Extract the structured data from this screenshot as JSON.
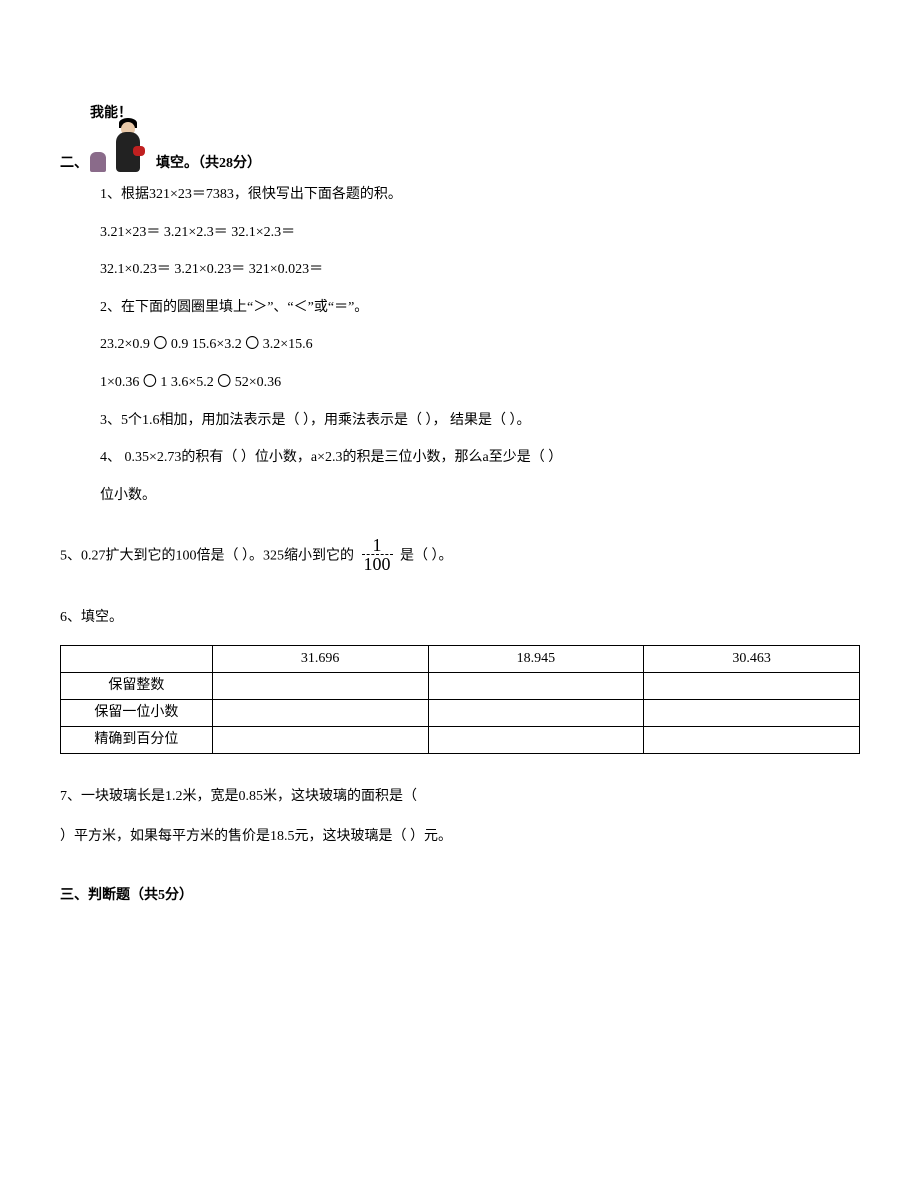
{
  "section2": {
    "prefix": "二、",
    "image_alt": "我能！",
    "title": "填空。（共28分）",
    "q1": {
      "stem": "1、根据321×23＝7383，很快写出下面各题的积。",
      "row1": "3.21×23＝  3.21×2.3＝  32.1×2.3＝",
      "row2": "32.1×0.23＝  3.21×0.23＝  321×0.023＝"
    },
    "q2": {
      "stem": "2、在下面的圆圈里填上“＞”、“＜”或“＝”。",
      "row1": "23.2×0.9 〇 0.9 15.6×3.2 〇 3.2×15.6",
      "row2": "1×0.36 〇 1 3.6×5.2 〇 52×0.36"
    },
    "q3": "3、5个1.6相加，用加法表示是（  ），用乘法表示是（  ），  结果是（  ）。",
    "q4_a": "4、 0.35×2.73的积有（  ）位小数，a×2.3的积是三位小数，那么a至少是（  ）",
    "q4_b": "位小数。"
  },
  "q5": {
    "before_fraction": "5、0.27扩大到它的100倍是（  ）。325缩小到它的",
    "fraction_num": "1",
    "fraction_den": "100",
    "after_fraction": "  是（  ）。"
  },
  "q6": {
    "stem": "6、填空。",
    "table": {
      "headers": [
        "",
        "31.696",
        "18.945",
        "30.463"
      ],
      "rows": [
        [
          "保留整数",
          "",
          "",
          ""
        ],
        [
          "保留一位小数",
          "",
          "",
          ""
        ],
        [
          "精确到百分位",
          "",
          "",
          ""
        ]
      ],
      "col_widths": [
        "19%",
        "27%",
        "27%",
        "27%"
      ],
      "border_color": "#000000",
      "background_color": "#ffffff"
    }
  },
  "q7": {
    "line1": "7、一块玻璃长是1.2米，宽是0.85米，这块玻璃的面积是（",
    "line2": "）平方米，如果每平方米的售价是18.5元，这块玻璃是（  ）元。"
  },
  "section3": {
    "title": "三、判断题（共5分）"
  }
}
